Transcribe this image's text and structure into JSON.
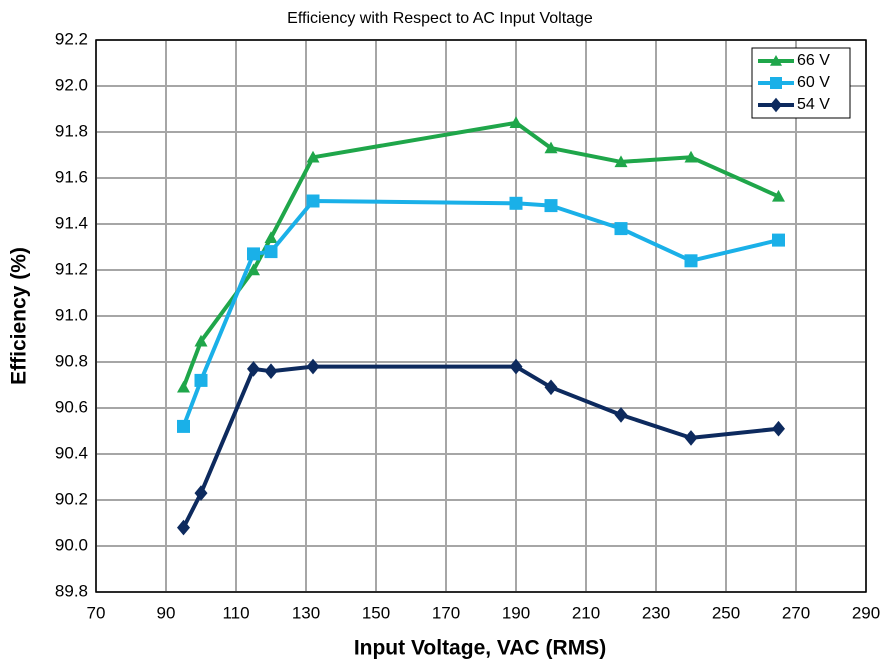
{
  "chart_data": {
    "type": "line",
    "title": "Efficiency with Respect to AC Input Voltage",
    "x_label": "Input Voltage, VAC (RMS)",
    "y_label": "Efficiency (%)",
    "x": [
      95,
      100,
      115,
      120,
      132,
      190,
      200,
      220,
      240,
      265
    ],
    "series": [
      {
        "name": "66 V",
        "color": "#1fa64a",
        "marker": "triangle",
        "values": [
          90.69,
          90.89,
          91.2,
          91.34,
          91.69,
          91.84,
          91.73,
          91.67,
          91.69,
          91.52
        ]
      },
      {
        "name": "60 V",
        "color": "#1ab0e8",
        "marker": "square",
        "values": [
          90.52,
          90.72,
          91.27,
          91.28,
          91.5,
          91.49,
          91.48,
          91.38,
          91.24,
          91.33
        ]
      },
      {
        "name": "54 V",
        "color": "#0d2a5e",
        "marker": "diamond",
        "values": [
          90.08,
          90.23,
          90.77,
          90.76,
          90.78,
          90.78,
          90.69,
          90.57,
          90.47,
          90.51
        ]
      }
    ],
    "xlim": [
      70,
      290
    ],
    "xticks": [
      70,
      90,
      110,
      130,
      150,
      170,
      190,
      210,
      230,
      250,
      270,
      290
    ],
    "ylim": [
      89.8,
      92.2
    ],
    "yticks": [
      89.8,
      {
        "value": 90,
        "label": "90.0"
      },
      90.2,
      90.4,
      90.6,
      90.8,
      {
        "value": 91,
        "label": "91.0"
      },
      91.2,
      91.4,
      91.6,
      91.8,
      {
        "value": 92,
        "label": "92.0"
      },
      92.2
    ],
    "grid": true,
    "legend": "top-right"
  }
}
